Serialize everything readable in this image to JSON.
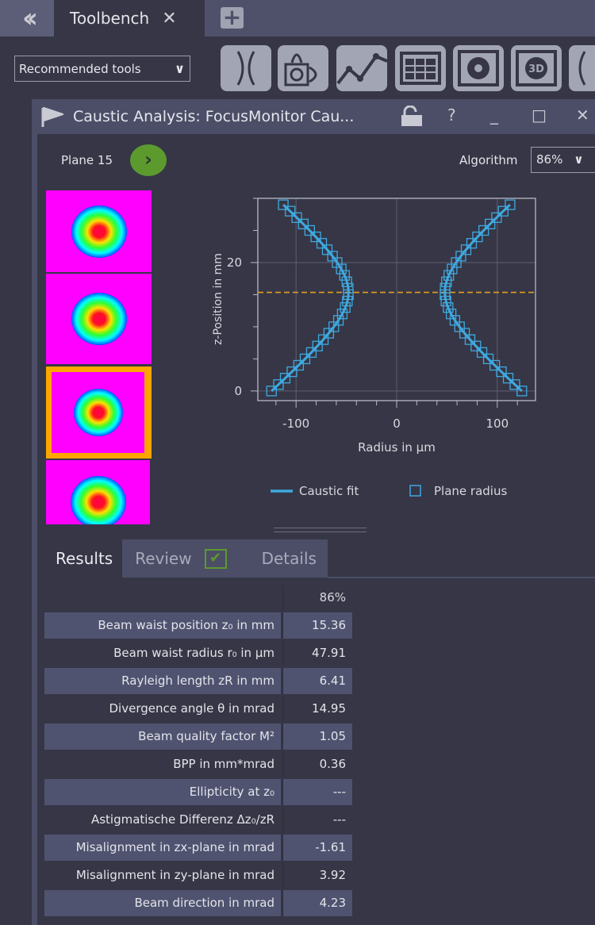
{
  "topbar": {
    "collapse_icon": "double-chevron-left-icon",
    "tab_label": "Toolbench",
    "tab_close": "✕",
    "add_tab": "+"
  },
  "toolbar": {
    "recommended_label": "Recommended tools",
    "tools": [
      "caustic-icon",
      "beam-profile-icon",
      "line-chart-icon",
      "table-icon",
      "circle-target-icon",
      "3d-view-icon",
      "caustic-icon"
    ],
    "tool_3d_text": "3D"
  },
  "window": {
    "title": "Caustic Analysis: FocusMonitor Cau...",
    "help": "?",
    "minimize": "_",
    "maximize": "□",
    "close": "✕"
  },
  "plane": {
    "label": "Plane 15"
  },
  "algorithm": {
    "label": "Algorithm",
    "value": "86%"
  },
  "colors": {
    "accent_green": "#5c9a2e",
    "selection_orange": "#ffa500",
    "fit_blue": "#3fa9df",
    "waist_line": "#e0a020"
  },
  "chart_data": {
    "type": "scatter",
    "xlabel": "Radius in µm",
    "ylabel": "z-Position in mm",
    "xlim": [
      -138,
      138
    ],
    "ylim": [
      -1.5,
      30
    ],
    "xticks": [
      -100,
      0,
      100
    ],
    "xtick_labels": [
      "-100",
      "0",
      "100"
    ],
    "yticks": [
      0,
      20
    ],
    "ytick_labels": [
      "0",
      "20"
    ],
    "grid": true,
    "legend": {
      "placement": "bottom",
      "entries": [
        "Caustic fit",
        "Plane radius"
      ]
    },
    "fit": {
      "w0_um": 47.91,
      "z0_mm": 15.36,
      "zR_mm": 6.41
    },
    "waist_line_z": 15.36,
    "plane_z": [
      0,
      1,
      2,
      3,
      4,
      5,
      6,
      7,
      8,
      9,
      10,
      11,
      12,
      13,
      14,
      15,
      16,
      17,
      18,
      19,
      20,
      21,
      22,
      23,
      24,
      25,
      26,
      27,
      28,
      29
    ],
    "plane_radius": [
      124.4,
      117.5,
      110.8,
      104.1,
      97.5,
      91.1,
      84.8,
      78.7,
      72.9,
      67.5,
      62.5,
      57.9,
      54.1,
      51.1,
      49.0,
      48.0,
      48.2,
      49.5,
      51.8,
      55.1,
      59.2,
      63.8,
      69.0,
      74.5,
      80.4,
      86.5,
      92.8,
      99.3,
      105.9,
      112.7
    ]
  },
  "results": {
    "tabs": [
      "Results",
      "Review",
      "Details"
    ],
    "column_header": "86%",
    "rows": [
      {
        "label": "Beam waist position z₀ in mm",
        "value": "15.36"
      },
      {
        "label": "Beam waist radius r₀ in µm",
        "value": "47.91"
      },
      {
        "label": "Rayleigh length zR in mm",
        "value": "6.41"
      },
      {
        "label": "Divergence angle θ in mrad",
        "value": "14.95"
      },
      {
        "label": "Beam quality factor M²",
        "value": "1.05"
      },
      {
        "label": "BPP in mm*mrad",
        "value": "0.36"
      },
      {
        "label": "Ellipticity at z₀",
        "value": "---"
      },
      {
        "label": "Astigmatische Differenz Δz₀/zR",
        "value": "---"
      },
      {
        "label": "Misalignment in zx-plane in mrad",
        "value": "-1.61"
      },
      {
        "label": "Misalignment in zy-plane in mrad",
        "value": "3.92"
      },
      {
        "label": "Beam direction in mrad",
        "value": "4.23"
      }
    ]
  }
}
